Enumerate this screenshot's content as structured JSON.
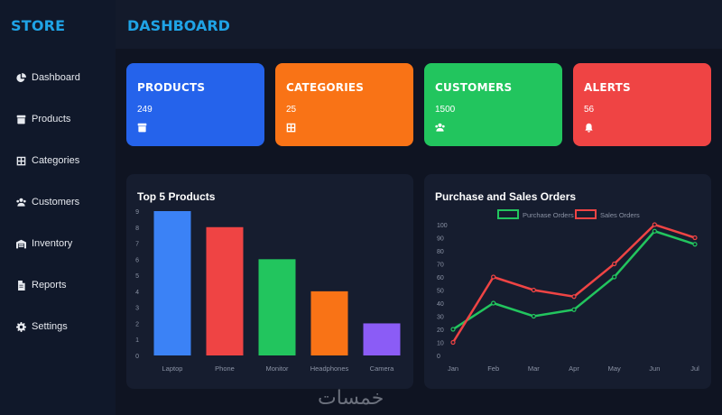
{
  "sidebar": {
    "brand": "STORE",
    "items": [
      {
        "label": "Dashboard",
        "icon": "pie-chart-icon"
      },
      {
        "label": "Products",
        "icon": "archive-icon"
      },
      {
        "label": "Categories",
        "icon": "grid-icon"
      },
      {
        "label": "Customers",
        "icon": "users-icon"
      },
      {
        "label": "Inventory",
        "icon": "warehouse-icon"
      },
      {
        "label": "Reports",
        "icon": "file-icon"
      },
      {
        "label": "Settings",
        "icon": "gear-icon"
      }
    ]
  },
  "header": {
    "title": "DASHBOARD"
  },
  "cards": [
    {
      "title": "PRODUCTS",
      "value": "249",
      "icon": "archive-icon",
      "color": "#2563eb"
    },
    {
      "title": "CATEGORIES",
      "value": "25",
      "icon": "grid-icon",
      "color": "#f97316"
    },
    {
      "title": "CUSTOMERS",
      "value": "1500",
      "icon": "users-icon",
      "color": "#22c55e"
    },
    {
      "title": "ALERTS",
      "value": "56",
      "icon": "bell-icon",
      "color": "#ef4444"
    }
  ],
  "charts": {
    "bar_title": "Top 5 Products",
    "line_title": "Purchase and Sales Orders"
  },
  "chart_data": [
    {
      "type": "bar",
      "title": "Top 5 Products",
      "categories": [
        "Laptop",
        "Phone",
        "Monitor",
        "Headphones",
        "Camera"
      ],
      "values": [
        9,
        8,
        6,
        4,
        2
      ],
      "colors": [
        "#3b82f6",
        "#ef4444",
        "#22c55e",
        "#f97316",
        "#8b5cf6"
      ],
      "ylim": [
        0,
        9
      ],
      "yticks": [
        "0",
        "1",
        "2",
        "3",
        "4",
        "5",
        "6",
        "7",
        "8",
        "9"
      ],
      "grid": false
    },
    {
      "type": "line",
      "title": "Purchase and Sales Orders",
      "categories": [
        "Jan",
        "Feb",
        "Mar",
        "Apr",
        "May",
        "Jun",
        "Jul"
      ],
      "series": [
        {
          "name": "Purchase Orders",
          "values": [
            20,
            40,
            30,
            35,
            60,
            95,
            85
          ],
          "color": "#22c55e"
        },
        {
          "name": "Sales Orders",
          "values": [
            10,
            60,
            50,
            45,
            70,
            100,
            90
          ],
          "color": "#ef4444"
        }
      ],
      "ylim": [
        0,
        100
      ],
      "yticks": [
        "0",
        "10",
        "20",
        "30",
        "40",
        "50",
        "60",
        "70",
        "80",
        "90",
        "100"
      ],
      "legend": "top-center",
      "grid": false
    }
  ],
  "watermark": "خمسات"
}
